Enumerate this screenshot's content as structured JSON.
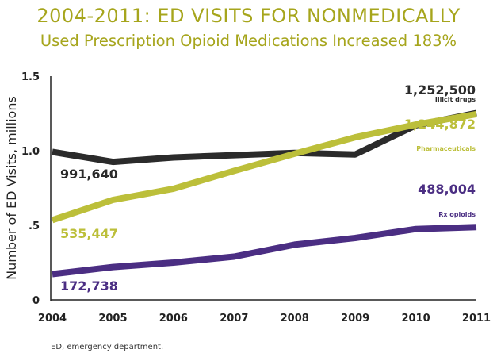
{
  "title": "2004-2011: ED VISITS FOR NONMEDICALLY",
  "subtitle": "Used Prescription Opioid Medications Increased 183%",
  "footnote": "ED, emergency department.",
  "colors": {
    "title": "#a6a51c",
    "illicit": "#2b2b2b",
    "pharma": "#bcbf3a",
    "rx": "#4b2e83",
    "axis": "#222222"
  },
  "chart_data": {
    "type": "line",
    "x": [
      "2004",
      "2005",
      "2006",
      "2007",
      "2008",
      "2009",
      "2010",
      "2011"
    ],
    "ylabel": "Number of ED Visits, millions",
    "xlabel": "",
    "ylim": [
      0,
      1.5
    ],
    "yticks": [
      0,
      0.5,
      1.0,
      1.5
    ],
    "ytick_labels": [
      "0",
      ".5",
      "1.0",
      "1.5"
    ],
    "grid": false,
    "legend": "none (direct labels)",
    "series": [
      {
        "name": "Illicit drugs",
        "color": "#2b2b2b",
        "values": [
          0.992,
          0.925,
          0.955,
          0.97,
          0.985,
          0.975,
          1.17,
          1.2525
        ],
        "start_label": "991,640",
        "end_label": "1,252,500"
      },
      {
        "name": "Pharmaceuticals",
        "color": "#bcbf3a",
        "values": [
          0.535,
          0.67,
          0.745,
          0.865,
          0.98,
          1.09,
          1.175,
          1.245
        ],
        "start_label": "535,447",
        "end_label": "1,244,872"
      },
      {
        "name": "Rx opioids",
        "color": "#4b2e83",
        "values": [
          0.173,
          0.22,
          0.25,
          0.29,
          0.37,
          0.415,
          0.475,
          0.488
        ],
        "start_label": "172,738",
        "end_label": "488,004"
      }
    ]
  }
}
